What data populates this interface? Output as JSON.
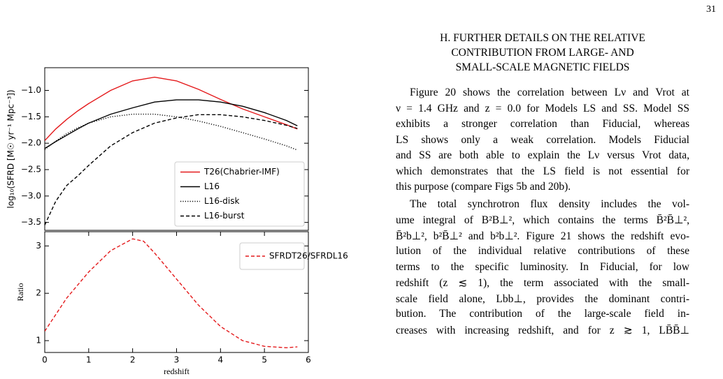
{
  "page_number": "31",
  "section": {
    "heading": [
      "H. FURTHER DETAILS ON THE RELATIVE",
      "CONTRIBUTION FROM LARGE- AND",
      "SMALL-SCALE MAGNETIC FIELDS"
    ],
    "paragraphs": [
      [
        "Figure 20 shows the correlation between Lν and Vrot at",
        "ν = 1.4 GHz and z = 0.0 for Models LS and SS. Model SS",
        "exhibits a stronger correlation than Fiducial, whereas",
        "LS shows only a weak correlation. Models Fiducial",
        "and SS are both able to explain the Lν versus Vrot data,",
        "which demonstrates that the LS field is not essential for",
        "this purpose (compare Figs 5b and 20b)."
      ],
      [
        "The total synchrotron flux density includes the vol-",
        "ume integral of B²B⊥², which contains the terms B̄²B̄⊥²,",
        "B̄²b⊥², b²B̄⊥² and b²b⊥². Figure 21 shows the redshift evo-",
        "lution of the individual relative contributions of these",
        "terms to the specific luminosity. In Fiducial, for low",
        "redshift (z ≲ 1), the term associated with the small-",
        "scale field alone, Lbb⊥, provides the dominant contri-",
        "bution. The contribution of the large-scale field in-",
        "creases with increasing redshift, and for z ≳ 1, LB̄B̄⊥"
      ]
    ]
  },
  "chart_data": [
    {
      "type": "line",
      "ylabel": "log₁₀(SFRD [M☉ yr⁻¹ Mpc⁻³])",
      "x": [
        0,
        0.25,
        0.5,
        0.75,
        1,
        1.5,
        2,
        2.5,
        3,
        3.5,
        4,
        4.5,
        5,
        5.5,
        5.75
      ],
      "xlim": [
        0,
        6
      ],
      "ylim": [
        -3.65,
        -0.57
      ],
      "yticks": [
        {
          "value": -1.0,
          "label": "−1.0"
        },
        {
          "value": -1.5,
          "label": "−1.5"
        },
        {
          "value": -2.0,
          "label": "−2.0"
        },
        {
          "value": -2.5,
          "label": "−2.5"
        },
        {
          "value": -3.0,
          "label": "−3.0"
        },
        {
          "value": -3.5,
          "label": "−3.5"
        }
      ],
      "legend": "lower right",
      "series": [
        {
          "name": "T26(Chabrier-IMF)",
          "color": "#e41a1c",
          "style": "solid",
          "values": [
            -1.95,
            -1.73,
            -1.55,
            -1.39,
            -1.25,
            -1.0,
            -0.82,
            -0.75,
            -0.82,
            -0.98,
            -1.17,
            -1.35,
            -1.5,
            -1.65,
            -1.73
          ]
        },
        {
          "name": "L16",
          "color": "#000000",
          "style": "solid",
          "values": [
            -2.1,
            -1.97,
            -1.85,
            -1.73,
            -1.62,
            -1.45,
            -1.33,
            -1.22,
            -1.18,
            -1.18,
            -1.22,
            -1.3,
            -1.42,
            -1.57,
            -1.67
          ]
        },
        {
          "name": "L16-disk",
          "color": "#000000",
          "style": "dotted",
          "values": [
            -2.12,
            -1.96,
            -1.82,
            -1.71,
            -1.62,
            -1.5,
            -1.45,
            -1.45,
            -1.5,
            -1.58,
            -1.68,
            -1.8,
            -1.92,
            -2.05,
            -2.13
          ]
        },
        {
          "name": "L16-burst",
          "color": "#000000",
          "style": "dashed",
          "values": [
            -3.55,
            -3.1,
            -2.8,
            -2.62,
            -2.42,
            -2.05,
            -1.8,
            -1.62,
            -1.52,
            -1.46,
            -1.46,
            -1.5,
            -1.57,
            -1.66,
            -1.72
          ]
        }
      ]
    },
    {
      "type": "line",
      "xlabel": "redshift",
      "ylabel": "Ratio",
      "x": [
        0,
        0.5,
        1,
        1.5,
        2,
        2.25,
        2.5,
        3,
        3.5,
        4,
        4.5,
        5,
        5.5,
        5.75
      ],
      "xlim": [
        0,
        6
      ],
      "ylim": [
        0.75,
        3.3
      ],
      "xticks": [
        0,
        1,
        2,
        3,
        4,
        5,
        6
      ],
      "yticks": [
        1,
        2,
        3
      ],
      "legend": "upper right",
      "series": [
        {
          "name": "SFRDT26/SFRDL16",
          "color": "#e41a1c",
          "style": "dashed",
          "values": [
            1.2,
            1.9,
            2.45,
            2.9,
            3.15,
            3.1,
            2.85,
            2.3,
            1.75,
            1.3,
            1.0,
            0.88,
            0.85,
            0.87
          ]
        }
      ]
    }
  ]
}
